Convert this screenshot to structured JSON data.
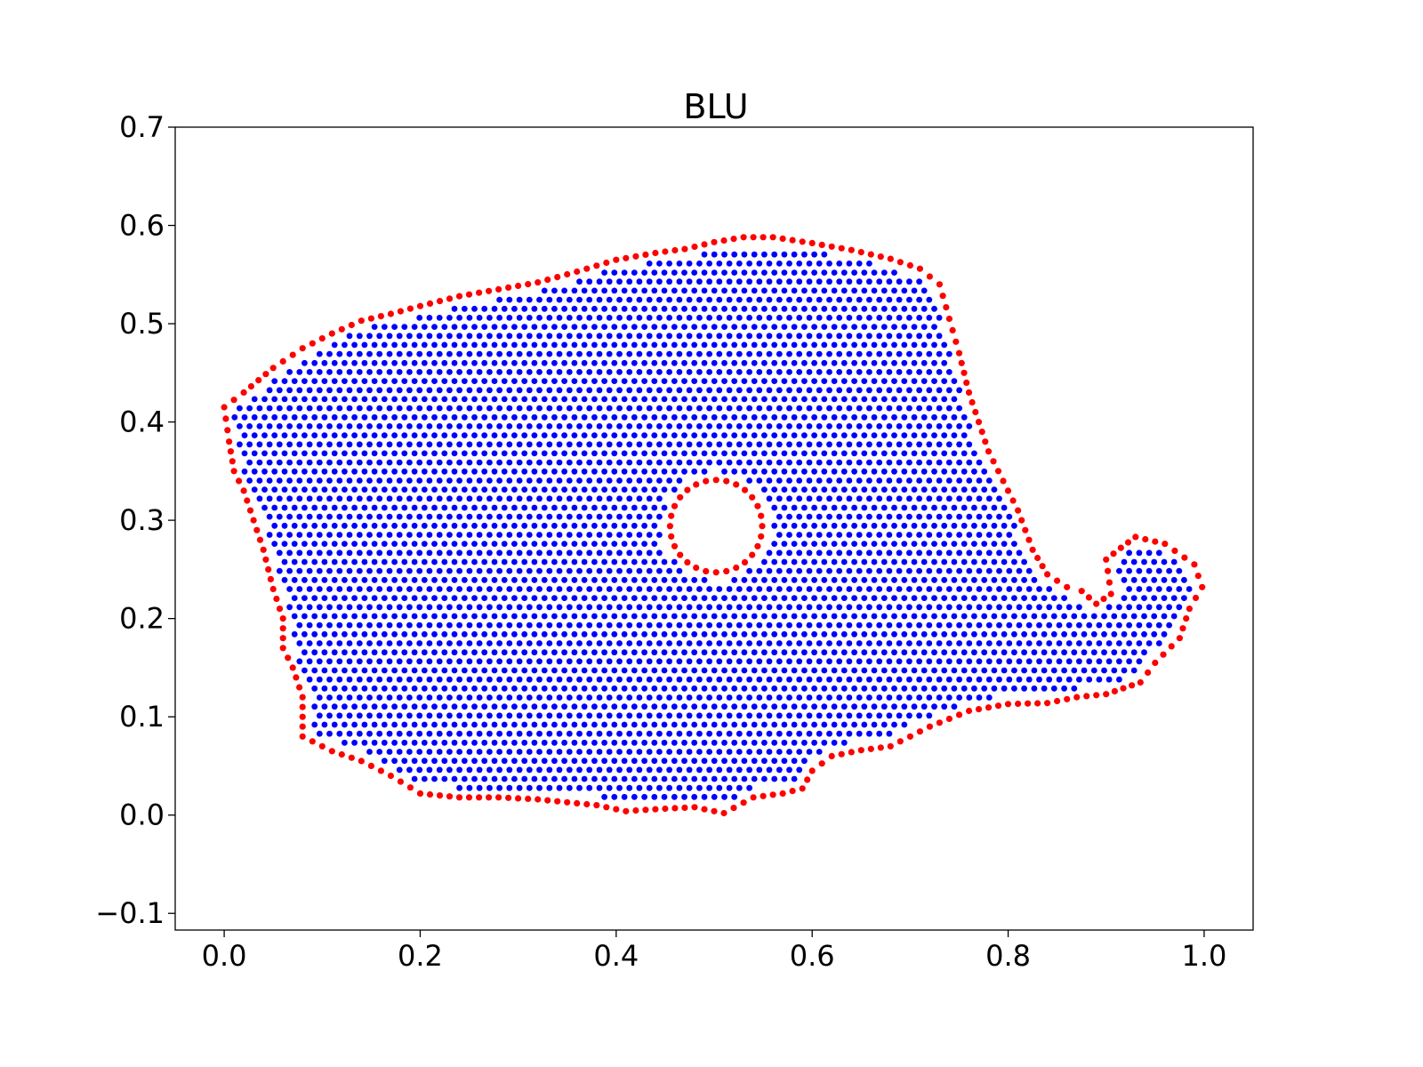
{
  "chart_data": {
    "type": "scatter",
    "title": "BLU",
    "xlabel": "",
    "ylabel": "",
    "xlim": [
      -0.05,
      1.05
    ],
    "ylim": [
      -0.117,
      0.7
    ],
    "x_ticks": [
      "0.0",
      "0.2",
      "0.4",
      "0.6",
      "0.8",
      "1.0"
    ],
    "y_ticks": [
      "−0.1",
      "0.0",
      "0.1",
      "0.2",
      "0.3",
      "0.4",
      "0.5",
      "0.6",
      "0.7"
    ],
    "grid": false,
    "legend": "none",
    "colors": {
      "interior": "#0000ff",
      "boundary": "#ff0000"
    },
    "boundary_outline": [
      [
        0.0,
        0.415
      ],
      [
        0.02,
        0.43
      ],
      [
        0.05,
        0.455
      ],
      [
        0.08,
        0.475
      ],
      [
        0.11,
        0.49
      ],
      [
        0.14,
        0.503
      ],
      [
        0.17,
        0.51
      ],
      [
        0.2,
        0.518
      ],
      [
        0.24,
        0.528
      ],
      [
        0.28,
        0.535
      ],
      [
        0.32,
        0.542
      ],
      [
        0.36,
        0.553
      ],
      [
        0.4,
        0.565
      ],
      [
        0.44,
        0.572
      ],
      [
        0.47,
        0.576
      ],
      [
        0.5,
        0.583
      ],
      [
        0.53,
        0.588
      ],
      [
        0.56,
        0.588
      ],
      [
        0.6,
        0.582
      ],
      [
        0.64,
        0.575
      ],
      [
        0.68,
        0.566
      ],
      [
        0.71,
        0.556
      ],
      [
        0.73,
        0.54
      ],
      [
        0.74,
        0.505
      ],
      [
        0.75,
        0.47
      ],
      [
        0.76,
        0.43
      ],
      [
        0.77,
        0.4
      ],
      [
        0.78,
        0.37
      ],
      [
        0.795,
        0.34
      ],
      [
        0.81,
        0.31
      ],
      [
        0.825,
        0.27
      ],
      [
        0.84,
        0.245
      ],
      [
        0.86,
        0.232
      ],
      [
        0.875,
        0.228
      ],
      [
        0.89,
        0.215
      ],
      [
        0.905,
        0.225
      ],
      [
        0.9,
        0.26
      ],
      [
        0.915,
        0.272
      ],
      [
        0.93,
        0.283
      ],
      [
        0.96,
        0.276
      ],
      [
        0.99,
        0.255
      ],
      [
        0.998,
        0.232
      ],
      [
        0.985,
        0.21
      ],
      [
        0.975,
        0.18
      ],
      [
        0.95,
        0.155
      ],
      [
        0.935,
        0.135
      ],
      [
        0.9,
        0.123
      ],
      [
        0.87,
        0.12
      ],
      [
        0.84,
        0.114
      ],
      [
        0.8,
        0.113
      ],
      [
        0.76,
        0.106
      ],
      [
        0.72,
        0.09
      ],
      [
        0.68,
        0.07
      ],
      [
        0.65,
        0.066
      ],
      [
        0.62,
        0.06
      ],
      [
        0.6,
        0.045
      ],
      [
        0.59,
        0.027
      ],
      [
        0.57,
        0.022
      ],
      [
        0.54,
        0.018
      ],
      [
        0.51,
        0.002
      ],
      [
        0.48,
        0.008
      ],
      [
        0.44,
        0.006
      ],
      [
        0.41,
        0.004
      ],
      [
        0.38,
        0.01
      ],
      [
        0.35,
        0.013
      ],
      [
        0.32,
        0.016
      ],
      [
        0.28,
        0.018
      ],
      [
        0.24,
        0.018
      ],
      [
        0.2,
        0.022
      ],
      [
        0.17,
        0.04
      ],
      [
        0.14,
        0.055
      ],
      [
        0.11,
        0.065
      ],
      [
        0.08,
        0.08
      ],
      [
        0.08,
        0.12
      ],
      [
        0.07,
        0.15
      ],
      [
        0.06,
        0.17
      ],
      [
        0.06,
        0.2
      ],
      [
        0.05,
        0.23
      ],
      [
        0.04,
        0.27
      ],
      [
        0.03,
        0.3
      ],
      [
        0.02,
        0.33
      ],
      [
        0.01,
        0.35
      ],
      [
        0.005,
        0.38
      ]
    ],
    "hole": {
      "center": [
        0.502,
        0.294
      ],
      "radius": 0.047
    }
  }
}
